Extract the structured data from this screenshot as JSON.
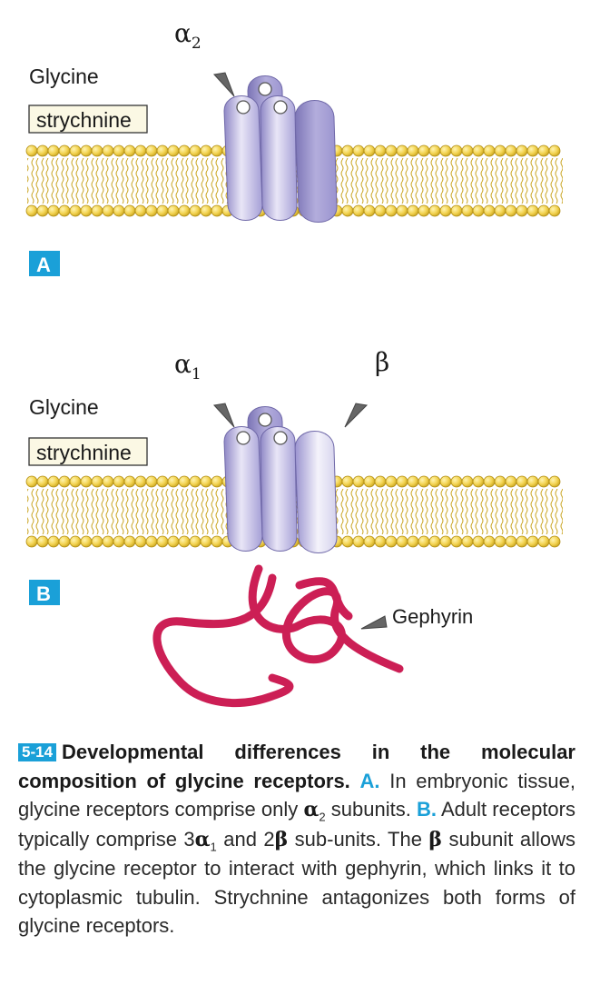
{
  "panel_a": {
    "marker": "A",
    "subunit_label": "α",
    "subunit_sub": "2",
    "ligand_label": "Glycine",
    "antagonist_label": "strychnine"
  },
  "panel_b": {
    "marker": "B",
    "subunit_label_1": "α",
    "subunit_sub_1": "1",
    "subunit_label_2": "β",
    "ligand_label": "Glycine",
    "antagonist_label": "strychnine",
    "anchor_label": "Gephyrin"
  },
  "caption": {
    "figure_number": "5-14",
    "title": "Developmental differences in the molecular composition of glycine receptors.",
    "marker_a": "A.",
    "text_a_1": "In embryonic tissue, glycine receptors comprise only",
    "alpha": "α",
    "sub_2": "2",
    "text_a_2": "subunits.",
    "marker_b": "B.",
    "text_b_1": "Adult receptors typically comprise 3",
    "sub_1": "1",
    "text_b_2": "and 2",
    "beta": "β",
    "text_b_3": "sub-units. The",
    "text_b_4": "subunit allows the glycine receptor to interact with gephyrin, which links it to cytoplasmic tubulin. Strychnine antagonizes both forms of glycine receptors."
  },
  "colors": {
    "accent": "#1aa0d8",
    "lipid_head": "#f2d24f",
    "receptor": "#b9b3e0",
    "gephyrin": "#cc1f55"
  }
}
